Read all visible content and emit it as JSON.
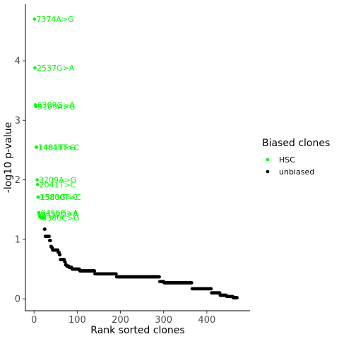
{
  "chart_data": {
    "type": "scatter",
    "xlabel": "Rank sorted clones",
    "ylabel": "-log10 p-value",
    "xlim": [
      -20,
      500
    ],
    "ylim": [
      -0.2,
      4.95
    ],
    "x_ticks": [
      0,
      100,
      200,
      300,
      400
    ],
    "y_ticks": [
      0,
      1,
      2,
      3,
      4
    ],
    "grid": false,
    "legend": {
      "title": "Biased clones",
      "position": "right",
      "entries": [
        {
          "label": "HSC",
          "color": "#00ff00"
        },
        {
          "label": "unbiased",
          "color": "#000000"
        }
      ]
    },
    "annotations": [
      {
        "label": "7374A>G",
        "x": 1,
        "y": 4.7
      },
      {
        "label": "2537G>A",
        "x": 2,
        "y": 3.88
      },
      {
        "label": "6309G>A",
        "x": 3,
        "y": 3.26
      },
      {
        "label": "5109A>G",
        "x": 4,
        "y": 3.23
      },
      {
        "label": "14848T>C",
        "x": 5,
        "y": 2.55
      },
      {
        "label": "1481T>G",
        "x": 6,
        "y": 2.55
      },
      {
        "label": "3209A>G",
        "x": 7,
        "y": 2.0
      },
      {
        "label": "2041T>C",
        "x": 8,
        "y": 1.92
      },
      {
        "label": "15800T>C",
        "x": 9,
        "y": 1.71
      },
      {
        "label": "1583G>C",
        "x": 10,
        "y": 1.71
      },
      {
        "label": "6456G>A",
        "x": 11,
        "y": 1.45
      },
      {
        "label": "6452C>A",
        "x": 12,
        "y": 1.42
      },
      {
        "label": "8380C>G",
        "x": 14,
        "y": 1.36
      }
    ],
    "series": [
      {
        "name": "HSC",
        "color": "#00ff00",
        "points": [
          [
            1,
            4.7
          ],
          [
            2,
            3.88
          ],
          [
            3,
            3.26
          ],
          [
            4,
            3.23
          ],
          [
            5,
            2.55
          ],
          [
            6,
            2.55
          ],
          [
            7,
            2.0
          ],
          [
            8,
            1.92
          ],
          [
            9,
            1.71
          ],
          [
            10,
            1.71
          ],
          [
            11,
            1.45
          ],
          [
            12,
            1.42
          ],
          [
            13,
            1.38
          ],
          [
            14,
            1.38
          ],
          [
            15,
            1.37
          ],
          [
            16,
            1.37
          ],
          [
            17,
            1.37
          ],
          [
            18,
            1.36
          ],
          [
            19,
            1.36
          ],
          [
            20,
            1.36
          ],
          [
            21,
            1.36
          ],
          [
            22,
            1.36
          ],
          [
            23,
            1.36
          ]
        ]
      },
      {
        "name": "unbiased",
        "color": "#000000",
        "segments": [
          [
            24,
            25,
            1.17
          ],
          [
            26,
            35,
            1.05
          ],
          [
            36,
            38,
            0.98
          ],
          [
            39,
            40,
            0.88
          ],
          [
            41,
            42,
            0.86
          ],
          [
            43,
            55,
            0.82
          ],
          [
            56,
            58,
            0.78
          ],
          [
            59,
            60,
            0.74
          ],
          [
            61,
            70,
            0.66
          ],
          [
            71,
            72,
            0.62
          ],
          [
            73,
            75,
            0.57
          ],
          [
            76,
            80,
            0.55
          ],
          [
            81,
            87,
            0.53
          ],
          [
            88,
            105,
            0.5
          ],
          [
            106,
            140,
            0.47
          ],
          [
            141,
            190,
            0.42
          ],
          [
            191,
            290,
            0.37
          ],
          [
            291,
            300,
            0.29
          ],
          [
            301,
            365,
            0.27
          ],
          [
            366,
            410,
            0.17
          ],
          [
            411,
            430,
            0.1
          ],
          [
            431,
            445,
            0.06
          ],
          [
            446,
            460,
            0.04
          ],
          [
            461,
            470,
            0.02
          ]
        ]
      }
    ]
  }
}
